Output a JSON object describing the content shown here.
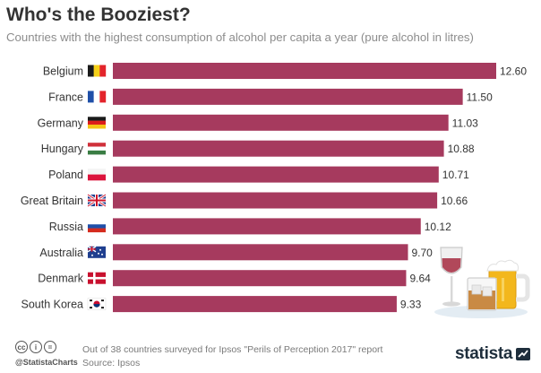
{
  "header": {
    "title": "Who's the Booziest?",
    "subtitle": "Countries with the highest consumption of alcohol per capita a year (pure alcohol in litres)"
  },
  "colors": {
    "bar": "#a63a5e",
    "text": "#333333",
    "muted": "#7a7a7a"
  },
  "chart_data": {
    "type": "bar",
    "orientation": "horizontal",
    "title": "Who's the Booziest?",
    "subtitle": "Countries with the highest consumption of alcohol per capita a year (pure alcohol in litres)",
    "categories": [
      "Belgium",
      "France",
      "Germany",
      "Hungary",
      "Poland",
      "Great Britain",
      "Russia",
      "Australia",
      "Denmark",
      "South Korea"
    ],
    "values": [
      12.6,
      11.5,
      11.03,
      10.88,
      10.71,
      10.66,
      10.12,
      9.7,
      9.64,
      9.33
    ],
    "value_labels": [
      "12.60",
      "11.50",
      "11.03",
      "10.88",
      "10.71",
      "10.66",
      "10.12",
      "9.70",
      "9.64",
      "9.33"
    ],
    "flags": [
      "belgium-flag-icon",
      "france-flag-icon",
      "germany-flag-icon",
      "hungary-flag-icon",
      "poland-flag-icon",
      "great-britain-flag-icon",
      "russia-flag-icon",
      "australia-flag-icon",
      "denmark-flag-icon",
      "south-korea-flag-icon"
    ],
    "xlim": [
      0,
      12.6
    ],
    "grid": false,
    "legend": "none"
  },
  "footer": {
    "handle": "@StatistaCharts",
    "note": "Out of 38 countries surveyed for Ipsos \"Perils of Perception 2017\" report",
    "source": "Source: Ipsos",
    "brand": "statista",
    "icons": [
      "cc-icon",
      "by-icon",
      "equals-icon"
    ]
  }
}
